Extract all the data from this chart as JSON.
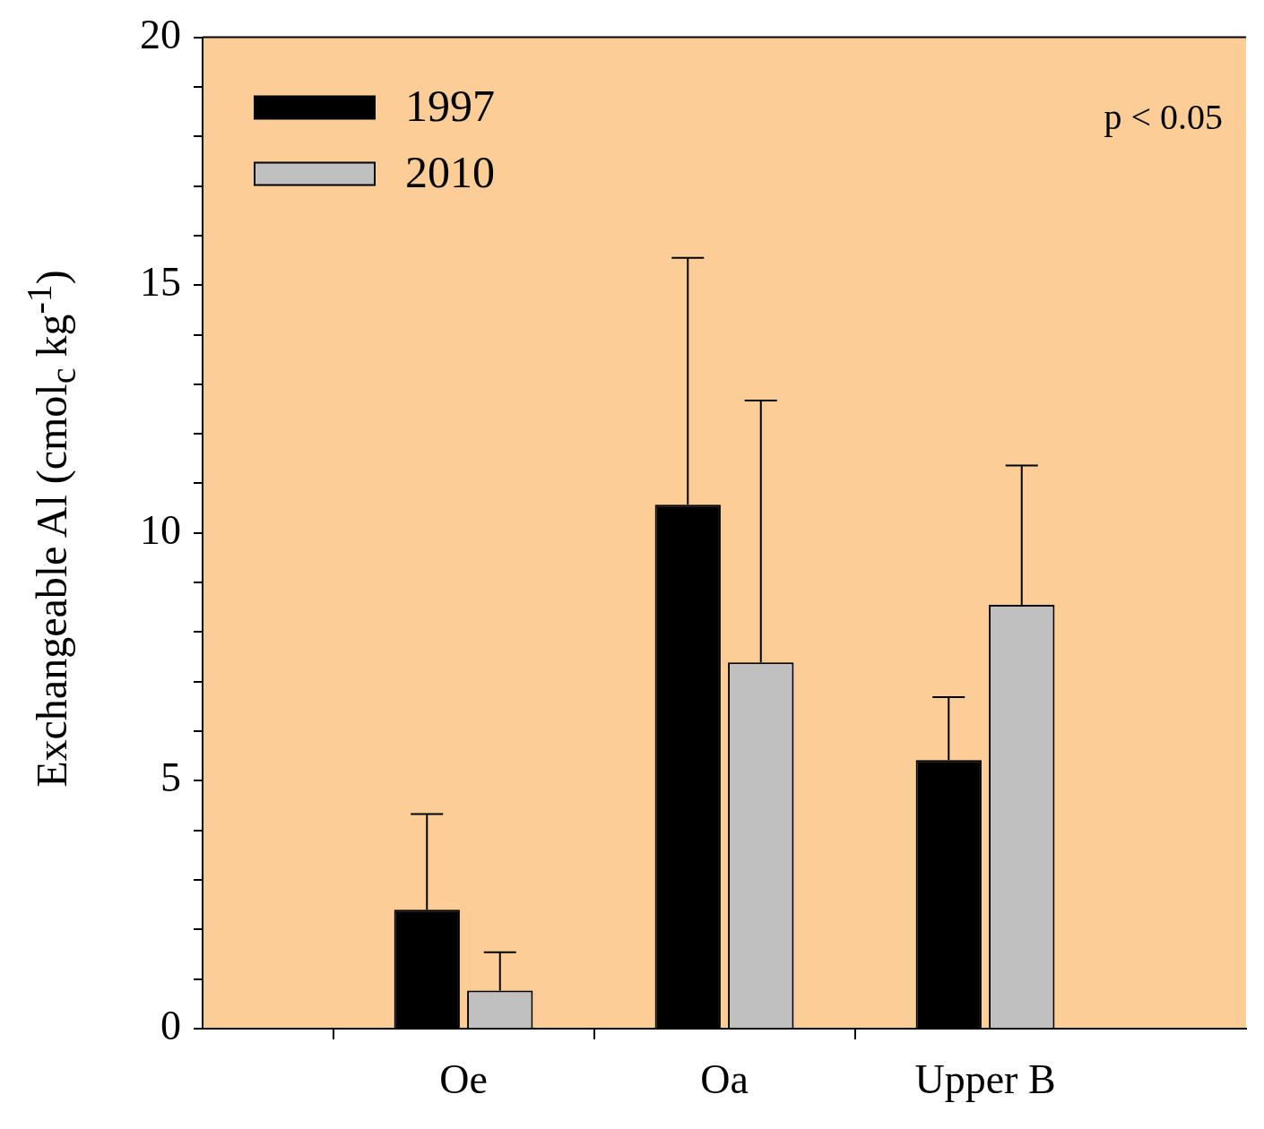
{
  "chart_data": {
    "type": "bar",
    "ylabel": "Exchangeable Al (cmol$_{c}$ kg$^{-1}$)",
    "categories": [
      "Oe",
      "Oa",
      "Upper B"
    ],
    "series": [
      {
        "name": "1997",
        "color": "#000000",
        "values": [
          2.4,
          10.57,
          5.42
        ],
        "errors": [
          [
            2.4,
            4.33
          ],
          [
            10.57,
            15.55
          ],
          [
            5.42,
            6.69
          ]
        ]
      },
      {
        "name": "2010",
        "color": "#c0c0c0",
        "values": [
          0.77,
          7.39,
          8.55
        ],
        "errors": [
          [
            0.77,
            1.54
          ],
          [
            7.39,
            12.67
          ],
          [
            8.55,
            11.36
          ]
        ]
      }
    ],
    "ylim": [
      0,
      20
    ],
    "yticks": [
      0,
      {
        "value": 1,
        "label": null
      },
      {
        "value": 2,
        "label": null
      },
      {
        "value": 3,
        "label": null
      },
      {
        "value": 4,
        "label": null
      },
      5,
      {
        "value": 6,
        "label": null
      },
      {
        "value": 7,
        "label": null
      },
      {
        "value": 8,
        "label": null
      },
      {
        "value": 9,
        "label": null
      },
      10,
      {
        "value": 11,
        "label": null
      },
      {
        "value": 12,
        "label": null
      },
      {
        "value": 13,
        "label": null
      },
      {
        "value": 14,
        "label": null
      },
      15,
      {
        "value": 16,
        "label": null
      },
      {
        "value": 17,
        "label": null
      },
      {
        "value": 18,
        "label": null
      },
      {
        "value": 19,
        "label": null
      },
      20
    ],
    "legend": "top left",
    "annotations": [
      "p < 0.05"
    ]
  }
}
